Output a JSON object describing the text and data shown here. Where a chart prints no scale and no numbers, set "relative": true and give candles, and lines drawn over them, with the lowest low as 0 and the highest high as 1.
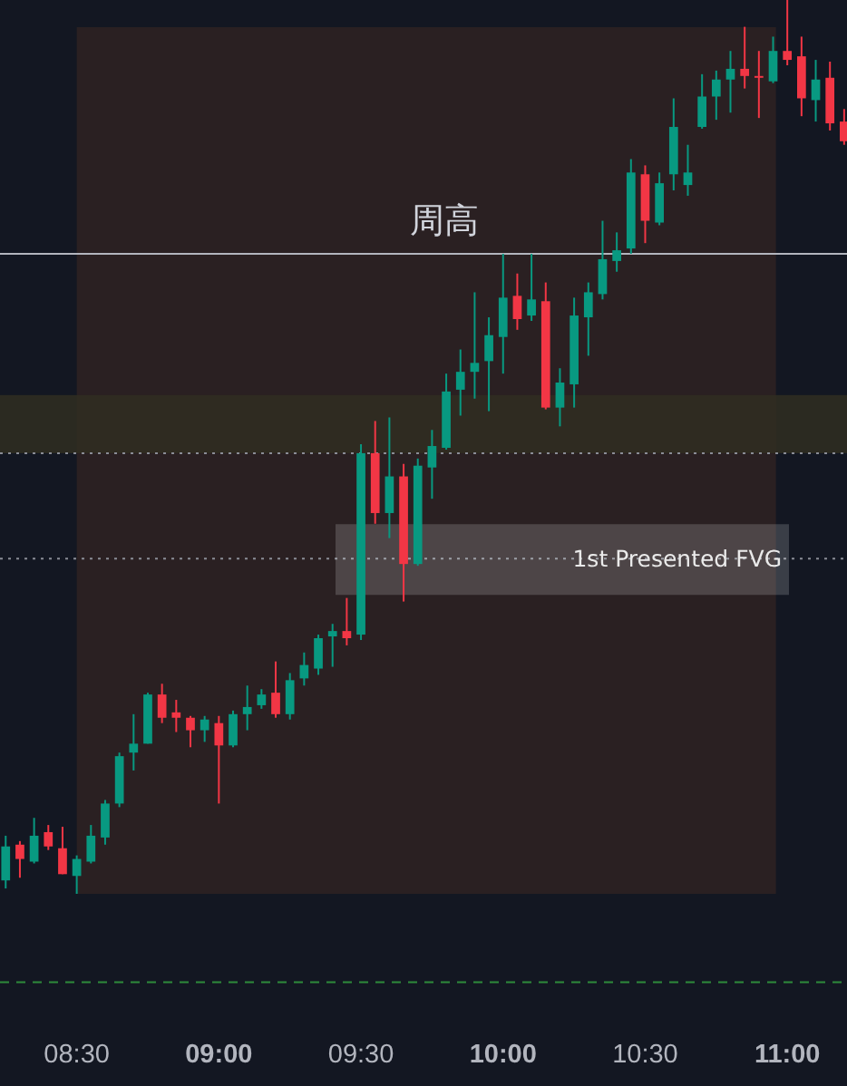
{
  "chart_data": {
    "type": "candlestick",
    "relative": true,
    "tick_labels": "x",
    "grid": false,
    "x": [
      8.25,
      8.3,
      8.35,
      8.4,
      8.45,
      8.5,
      8.55,
      8.6,
      8.65,
      8.7,
      8.75,
      8.8,
      8.85,
      8.9,
      8.95,
      9.0,
      9.05,
      9.1,
      9.15,
      9.2,
      9.25,
      9.3,
      9.35,
      9.4,
      9.45,
      9.5,
      9.55,
      9.6,
      9.65,
      9.7,
      9.75,
      9.8,
      9.85,
      9.9,
      9.95,
      10.0,
      10.05,
      10.1,
      10.15,
      10.2,
      10.25,
      10.3,
      10.35,
      10.4,
      10.45,
      10.5,
      10.55,
      10.6,
      10.65,
      10.7,
      10.75,
      10.8,
      10.85,
      10.9,
      10.95,
      11.0,
      11.05,
      11.1,
      11.15,
      11.2
    ],
    "ohlc": [
      [
        0.015,
        0.065,
        0.006,
        0.053
      ],
      [
        0.055,
        0.059,
        0.018,
        0.039
      ],
      [
        0.036,
        0.085,
        0.034,
        0.065
      ],
      [
        0.069,
        0.077,
        0.049,
        0.053
      ],
      [
        0.051,
        0.075,
        0.022,
        0.022
      ],
      [
        0.02,
        0.043,
        0,
        0.039
      ],
      [
        0.036,
        0.077,
        0.034,
        0.065
      ],
      [
        0.063,
        0.105,
        0.055,
        0.101
      ],
      [
        0.101,
        0.158,
        0.097,
        0.154
      ],
      [
        0.158,
        0.201,
        0.138,
        0.168
      ],
      [
        0.168,
        0.225,
        0.168,
        0.223
      ],
      [
        0.223,
        0.235,
        0.191,
        0.197
      ],
      [
        0.203,
        0.217,
        0.181,
        0.197
      ],
      [
        0.197,
        0.199,
        0.164,
        0.183
      ],
      [
        0.183,
        0.199,
        0.17,
        0.195
      ],
      [
        0.191,
        0.199,
        0.101,
        0.166
      ],
      [
        0.166,
        0.205,
        0.164,
        0.201
      ],
      [
        0.201,
        0.233,
        0.183,
        0.209
      ],
      [
        0.211,
        0.229,
        0.207,
        0.223
      ],
      [
        0.225,
        0.26,
        0.197,
        0.201
      ],
      [
        0.201,
        0.247,
        0.195,
        0.239
      ],
      [
        0.241,
        0.27,
        0.233,
        0.256
      ],
      [
        0.252,
        0.29,
        0.245,
        0.286
      ],
      [
        0.288,
        0.302,
        0.254,
        0.294
      ],
      [
        0.294,
        0.331,
        0.278,
        0.286
      ],
      [
        0.29,
        0.503,
        0.284,
        0.493
      ],
      [
        0.493,
        0.529,
        0.414,
        0.426
      ],
      [
        0.426,
        0.533,
        0.398,
        0.467
      ],
      [
        0.467,
        0.481,
        0.327,
        0.369
      ],
      [
        0.369,
        0.487,
        0.367,
        0.479
      ],
      [
        0.477,
        0.519,
        0.442,
        0.501
      ],
      [
        0.499,
        0.582,
        0.497,
        0.562
      ],
      [
        0.564,
        0.609,
        0.535,
        0.584
      ],
      [
        0.584,
        0.673,
        0.554,
        0.594
      ],
      [
        0.596,
        0.645,
        0.54,
        0.625
      ],
      [
        0.623,
        0.716,
        0.582,
        0.667
      ],
      [
        0.669,
        0.694,
        0.631,
        0.643
      ],
      [
        0.647,
        0.716,
        0.641,
        0.665
      ],
      [
        0.663,
        0.684,
        0.542,
        0.544
      ],
      [
        0.544,
        0.588,
        0.523,
        0.572
      ],
      [
        0.57,
        0.667,
        0.544,
        0.647
      ],
      [
        0.645,
        0.684,
        0.602,
        0.673
      ],
      [
        0.671,
        0.753,
        0.665,
        0.71
      ],
      [
        0.708,
        0.74,
        0.696,
        0.72
      ],
      [
        0.722,
        0.822,
        0.716,
        0.807
      ],
      [
        0.805,
        0.815,
        0.728,
        0.753
      ],
      [
        0.751,
        0.807,
        0.748,
        0.795
      ],
      [
        0.805,
        0.89,
        0.787,
        0.858
      ],
      [
        0.793,
        0.838,
        0.781,
        0.807
      ],
      [
        0.858,
        0.917,
        0.856,
        0.892
      ],
      [
        0.892,
        0.921,
        0.866,
        0.911
      ],
      [
        0.911,
        0.943,
        0.874,
        0.923
      ],
      [
        0.923,
        0.97,
        0.901,
        0.915
      ],
      [
        0.915,
        0.943,
        0.868,
        0.913
      ],
      [
        0.909,
        0.959,
        0.907,
        0.943
      ],
      [
        0.943,
        1,
        0.927,
        0.933
      ],
      [
        0.937,
        0.959,
        0.87,
        0.89
      ],
      [
        0.888,
        0.933,
        0.864,
        0.911
      ],
      [
        0.913,
        0.931,
        0.854,
        0.862
      ],
      [
        0.864,
        0.878,
        0.838,
        0.842
      ]
    ],
    "xlim": [
      8.23,
      11.21
    ],
    "xticks": [
      {
        "value": 8.5,
        "label": "08:30"
      },
      {
        "value": 9,
        "label": "09:00"
      },
      {
        "value": 9.5,
        "label": "09:30"
      },
      {
        "value": 10,
        "label": "10:00"
      },
      {
        "value": 10.5,
        "label": "10:30"
      },
      {
        "value": 11,
        "label": "11:00"
      }
    ],
    "bands": [
      {
        "axis": "x",
        "from": 8.5,
        "to": 10.96,
        "color": "#2a2022"
      },
      {
        "axis": "y",
        "from": 0.493,
        "to": 0.558,
        "color": "#302e21"
      }
    ],
    "ref_lines": [
      {
        "axis": "y",
        "value": 0.716,
        "label": "周高",
        "color": "#b2b5be",
        "line_style": "solid"
      },
      {
        "axis": "y",
        "value": 0.493,
        "color": "#8a8d96",
        "line_style": "dotted"
      },
      {
        "axis": "y",
        "value": 0.375,
        "label": "1st Presented FVG",
        "color": "#8a8d96",
        "line_style": "dotted"
      },
      {
        "axis": "y",
        "value": -0.099,
        "color": "#2e8b3a",
        "line_style": "dashed"
      }
    ]
  }
}
